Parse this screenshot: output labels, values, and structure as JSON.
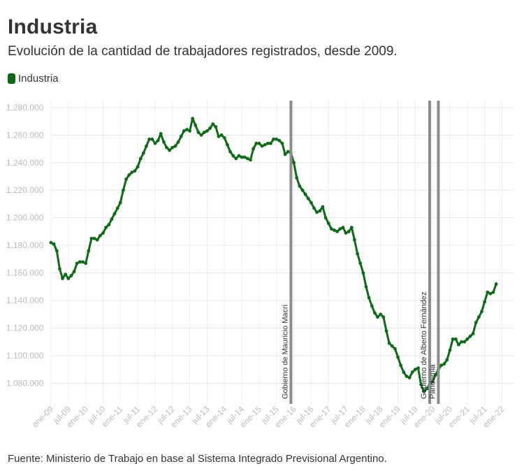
{
  "title": "Industria",
  "subtitle": "Evolución de la cantidad de trabajadores registrados, desde 2009.",
  "legend": {
    "label": "Industria",
    "color": "#0d6b16"
  },
  "footer": "Fuente: Ministerio de Trabajo en base al Sistema Integrado Previsional Argentino.",
  "chart_data": {
    "type": "line",
    "title": "Industria",
    "xlabel": "",
    "ylabel": "",
    "ylim": [
      1065000,
      1285000
    ],
    "y_ticks": [
      1080000,
      1100000,
      1120000,
      1140000,
      1160000,
      1180000,
      1200000,
      1220000,
      1240000,
      1260000,
      1280000
    ],
    "y_tick_labels": [
      "1.080.000",
      "1.100.000",
      "1.120.000",
      "1.140.000",
      "1.160.000",
      "1.180.000",
      "1.200.000",
      "1.220.000",
      "1.240.000",
      "1.260.000",
      "1.280.000"
    ],
    "x_tick_labels": [
      "ene-09",
      "jul-09",
      "ene-10",
      "jul-10",
      "ene-11",
      "jul-11",
      "ene-12",
      "jul-12",
      "ene-13",
      "jul-13",
      "ene-14",
      "jul-14",
      "ene-15",
      "jul-15",
      "ene-16",
      "jul-16",
      "ene-17",
      "jul-17",
      "ene-18",
      "jul-18",
      "ene-19",
      "jul-19",
      "ene-20",
      "jul-20",
      "ene-21",
      "jul-21",
      "ene-22"
    ],
    "x_ticks_month_index": [
      0,
      6,
      12,
      18,
      24,
      30,
      36,
      42,
      48,
      54,
      60,
      66,
      72,
      78,
      84,
      90,
      96,
      102,
      108,
      114,
      120,
      126,
      132,
      138,
      144,
      150,
      156
    ],
    "x_range_month_index": [
      0,
      160
    ],
    "grid": true,
    "legend_position": "top-left",
    "annotations": [
      {
        "label": "Gobierno de Mauricio Macri",
        "month_index": 83
      },
      {
        "label": "Gobierno de Alberto Fernández",
        "month_index": 131
      },
      {
        "label": "Pandemia",
        "month_index": 134
      }
    ],
    "series": [
      {
        "name": "Industria",
        "color": "#0d6b16",
        "anchors": [
          [
            0,
            1182000
          ],
          [
            1,
            1181000
          ],
          [
            2,
            1176000
          ],
          [
            3,
            1163000
          ],
          [
            4,
            1156000
          ],
          [
            5,
            1159000
          ],
          [
            6,
            1156000
          ],
          [
            7,
            1158000
          ],
          [
            8,
            1161000
          ],
          [
            9,
            1167000
          ],
          [
            10,
            1168000
          ],
          [
            11,
            1168000
          ],
          [
            12,
            1167000
          ],
          [
            13,
            1176000
          ],
          [
            14,
            1185000
          ],
          [
            15,
            1185000
          ],
          [
            16,
            1184000
          ],
          [
            17,
            1187000
          ],
          [
            18,
            1189000
          ],
          [
            19,
            1193000
          ],
          [
            20,
            1195000
          ],
          [
            21,
            1199000
          ],
          [
            22,
            1203000
          ],
          [
            23,
            1207000
          ],
          [
            24,
            1211000
          ],
          [
            25,
            1220000
          ],
          [
            26,
            1228000
          ],
          [
            27,
            1231000
          ],
          [
            28,
            1233000
          ],
          [
            29,
            1234000
          ],
          [
            30,
            1237000
          ],
          [
            31,
            1243000
          ],
          [
            32,
            1247000
          ],
          [
            33,
            1252000
          ],
          [
            34,
            1257000
          ],
          [
            35,
            1257000
          ],
          [
            36,
            1254000
          ],
          [
            37,
            1256000
          ],
          [
            38,
            1261000
          ],
          [
            39,
            1255000
          ],
          [
            40,
            1251000
          ],
          [
            41,
            1249000
          ],
          [
            42,
            1251000
          ],
          [
            43,
            1252000
          ],
          [
            44,
            1255000
          ],
          [
            45,
            1259000
          ],
          [
            46,
            1263000
          ],
          [
            47,
            1264000
          ],
          [
            48,
            1263000
          ],
          [
            49,
            1272000
          ],
          [
            50,
            1267000
          ],
          [
            51,
            1262000
          ],
          [
            52,
            1260000
          ],
          [
            53,
            1262000
          ],
          [
            54,
            1263000
          ],
          [
            55,
            1265000
          ],
          [
            56,
            1268000
          ],
          [
            57,
            1266000
          ],
          [
            58,
            1259000
          ],
          [
            59,
            1260000
          ],
          [
            60,
            1258000
          ],
          [
            61,
            1253000
          ],
          [
            62,
            1248000
          ],
          [
            63,
            1245000
          ],
          [
            64,
            1243000
          ],
          [
            65,
            1245000
          ],
          [
            66,
            1244000
          ],
          [
            67,
            1244000
          ],
          [
            68,
            1243000
          ],
          [
            69,
            1242000
          ],
          [
            70,
            1250000
          ],
          [
            71,
            1254000
          ],
          [
            72,
            1254000
          ],
          [
            73,
            1252000
          ],
          [
            74,
            1253000
          ],
          [
            75,
            1254000
          ],
          [
            76,
            1254000
          ],
          [
            77,
            1257000
          ],
          [
            78,
            1257000
          ],
          [
            79,
            1256000
          ],
          [
            80,
            1254000
          ],
          [
            81,
            1246000
          ],
          [
            82,
            1248000
          ],
          [
            83,
            1247000
          ],
          [
            84,
            1240000
          ],
          [
            85,
            1229000
          ],
          [
            86,
            1223000
          ],
          [
            87,
            1220000
          ],
          [
            88,
            1217000
          ],
          [
            89,
            1214000
          ],
          [
            90,
            1211000
          ],
          [
            91,
            1207000
          ],
          [
            92,
            1204000
          ],
          [
            93,
            1205000
          ],
          [
            94,
            1208000
          ],
          [
            95,
            1200000
          ],
          [
            96,
            1196000
          ],
          [
            97,
            1192000
          ],
          [
            98,
            1191000
          ],
          [
            99,
            1190000
          ],
          [
            100,
            1192000
          ],
          [
            101,
            1193000
          ],
          [
            102,
            1189000
          ],
          [
            103,
            1190000
          ],
          [
            104,
            1193000
          ],
          [
            105,
            1184000
          ],
          [
            106,
            1174000
          ],
          [
            107,
            1167000
          ],
          [
            108,
            1160000
          ],
          [
            109,
            1150000
          ],
          [
            110,
            1142000
          ],
          [
            111,
            1136000
          ],
          [
            112,
            1131000
          ],
          [
            113,
            1128000
          ],
          [
            114,
            1130000
          ],
          [
            115,
            1128000
          ],
          [
            116,
            1118000
          ],
          [
            117,
            1109000
          ],
          [
            118,
            1107000
          ],
          [
            119,
            1105000
          ],
          [
            120,
            1099000
          ],
          [
            121,
            1093000
          ],
          [
            122,
            1088000
          ],
          [
            123,
            1085000
          ],
          [
            124,
            1084000
          ],
          [
            125,
            1088000
          ],
          [
            126,
            1090000
          ],
          [
            127,
            1091000
          ],
          [
            128,
            1079000
          ],
          [
            129,
            1074000
          ],
          [
            130,
            1076000
          ],
          [
            131,
            1079000
          ],
          [
            132,
            1081000
          ],
          [
            133,
            1086000
          ],
          [
            134,
            1090000
          ],
          [
            135,
            1093000
          ],
          [
            136,
            1094000
          ],
          [
            137,
            1097000
          ],
          [
            138,
            1104000
          ],
          [
            139,
            1112000
          ],
          [
            140,
            1112000
          ],
          [
            141,
            1108000
          ],
          [
            142,
            1110000
          ],
          [
            143,
            1110000
          ],
          [
            144,
            1112000
          ],
          [
            145,
            1114000
          ],
          [
            146,
            1116000
          ],
          [
            147,
            1124000
          ],
          [
            148,
            1128000
          ],
          [
            149,
            1132000
          ],
          [
            150,
            1139000
          ],
          [
            151,
            1146000
          ],
          [
            152,
            1145000
          ],
          [
            153,
            1146000
          ],
          [
            154,
            1152000
          ]
        ]
      }
    ]
  }
}
